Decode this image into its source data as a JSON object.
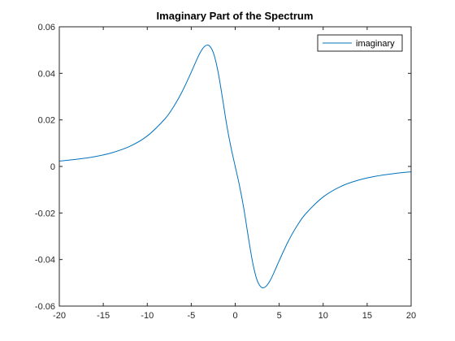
{
  "colors": {
    "series": "#0072bd",
    "axes": "#262626",
    "background": "#ffffff"
  },
  "chart_data": {
    "type": "line",
    "title": "Imaginary Part of the Spectrum",
    "xlabel": "",
    "ylabel": "",
    "xlim": [
      -20,
      20
    ],
    "ylim": [
      -0.06,
      0.06
    ],
    "xticks": [
      -20,
      -15,
      -10,
      -5,
      0,
      5,
      10,
      15,
      20
    ],
    "yticks": [
      -0.06,
      -0.04,
      -0.02,
      0,
      0.02,
      0.04,
      0.06
    ],
    "xtick_labels": [
      "-20",
      "-15",
      "-10",
      "-5",
      "0",
      "5",
      "10",
      "15",
      "20"
    ],
    "ytick_labels": [
      "-0.06",
      "-0.04",
      "-0.02",
      "0",
      "0.02",
      "0.04",
      "0.06"
    ],
    "grid": false,
    "legend_position": "top-right",
    "series": [
      {
        "name": "imaginary",
        "color": "#0072bd",
        "x": [
          -20,
          -18,
          -16,
          -14,
          -12,
          -10,
          -8,
          -7,
          -6,
          -5,
          -4.5,
          -4,
          -3.5,
          -3,
          -2.5,
          -2,
          -1.5,
          -1,
          -0.5,
          0,
          0.5,
          1,
          1.5,
          2,
          2.5,
          3,
          3.5,
          4,
          4.5,
          5,
          6,
          7,
          8,
          10,
          12,
          14,
          16,
          18,
          20
        ],
        "y": [
          0.0023,
          0.0031,
          0.0042,
          0.0059,
          0.0086,
          0.0131,
          0.0204,
          0.0257,
          0.0324,
          0.0405,
          0.0448,
          0.0488,
          0.0515,
          0.052,
          0.049,
          0.0416,
          0.0306,
          0.0186,
          0.0085,
          0.0,
          -0.0085,
          -0.0186,
          -0.0306,
          -0.0416,
          -0.049,
          -0.052,
          -0.0515,
          -0.0488,
          -0.0448,
          -0.0405,
          -0.0324,
          -0.0257,
          -0.0204,
          -0.0131,
          -0.0086,
          -0.0059,
          -0.0042,
          -0.0031,
          -0.0023
        ]
      }
    ]
  }
}
